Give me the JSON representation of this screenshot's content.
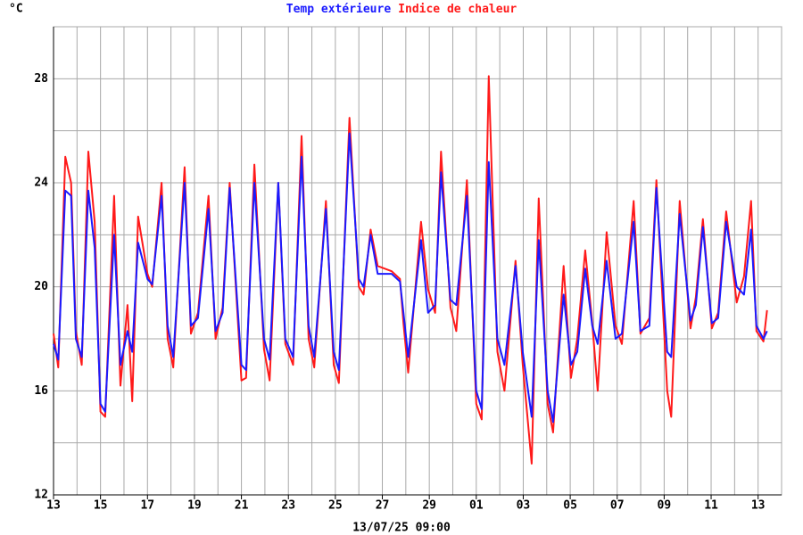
{
  "chart_data": {
    "type": "line",
    "ylabel": "°C",
    "xlabel": "13/07/25 09:00",
    "xlim": [
      0,
      31
    ],
    "ylim": [
      12,
      30
    ],
    "xticks": [
      {
        "value": 0,
        "label": "13"
      },
      {
        "value": 2,
        "label": "15"
      },
      {
        "value": 4,
        "label": "17"
      },
      {
        "value": 6,
        "label": "19"
      },
      {
        "value": 8,
        "label": "21"
      },
      {
        "value": 10,
        "label": "23"
      },
      {
        "value": 12,
        "label": "25"
      },
      {
        "value": 14,
        "label": "27"
      },
      {
        "value": 16,
        "label": "29"
      },
      {
        "value": 18,
        "label": "01"
      },
      {
        "value": 20,
        "label": "03"
      },
      {
        "value": 22,
        "label": "05"
      },
      {
        "value": 24,
        "label": "07"
      },
      {
        "value": 26,
        "label": "09"
      },
      {
        "value": 28,
        "label": "11"
      },
      {
        "value": 30,
        "label": "13"
      }
    ],
    "minor_xticks": [
      1,
      3,
      5,
      7,
      9,
      11,
      13,
      15,
      17,
      19,
      21,
      23,
      25,
      27,
      29,
      31
    ],
    "yticks": [
      12,
      16,
      20,
      24,
      28
    ],
    "minor_yticks": [
      14,
      18,
      22,
      26,
      30
    ],
    "grid": true,
    "x": [
      0,
      0.2,
      0.5,
      0.75,
      0.95,
      1.2,
      1.48,
      1.75,
      2.0,
      2.2,
      2.58,
      2.85,
      3.15,
      3.35,
      3.6,
      4.0,
      4.2,
      4.6,
      4.86,
      5.1,
      5.58,
      5.85,
      6.15,
      6.6,
      6.9,
      7.2,
      7.5,
      8.0,
      8.2,
      8.55,
      8.96,
      9.2,
      9.57,
      9.87,
      10.2,
      10.56,
      10.86,
      11.1,
      11.6,
      11.93,
      12.15,
      12.6,
      13.0,
      13.2,
      13.5,
      13.8,
      14.4,
      14.75,
      14.9,
      15.1,
      15.65,
      15.95,
      16.25,
      16.5,
      16.9,
      17.15,
      17.6,
      18.0,
      18.23,
      18.53,
      18.9,
      19.2,
      19.67,
      19.98,
      20.36,
      20.66,
      21.04,
      21.27,
      21.72,
      22.03,
      22.3,
      22.64,
      22.94,
      23.17,
      23.55,
      23.93,
      24.2,
      24.7,
      24.99,
      25.37,
      25.67,
      26.13,
      26.3,
      26.66,
      27.12,
      27.35,
      27.65,
      28.03,
      28.3,
      28.64,
      29.09,
      29.4,
      29.7,
      29.93,
      30.23,
      30.38
    ],
    "series": [
      {
        "name": "Temp extérieure",
        "color": "#1a1aff",
        "values": [
          17.8,
          17.2,
          23.7,
          23.5,
          18.0,
          17.3,
          23.7,
          21.5,
          15.5,
          15.2,
          22.0,
          17.0,
          18.3,
          17.5,
          21.7,
          20.3,
          20.1,
          23.5,
          18.5,
          17.3,
          24.0,
          18.5,
          18.8,
          23.0,
          18.3,
          19.0,
          23.8,
          17.0,
          16.8,
          24.0,
          18.0,
          17.2,
          24.0,
          18.0,
          17.3,
          25.0,
          18.5,
          17.3,
          23.0,
          17.5,
          16.8,
          25.9,
          20.3,
          20.0,
          22.0,
          20.5,
          20.5,
          20.2,
          19.0,
          17.3,
          21.8,
          19.0,
          19.3,
          24.4,
          19.5,
          19.3,
          23.5,
          16.0,
          15.3,
          24.8,
          18.0,
          17.0,
          20.8,
          17.5,
          15.0,
          21.8,
          16.0,
          14.8,
          19.7,
          17.0,
          17.5,
          20.7,
          18.5,
          17.8,
          21.0,
          18.0,
          18.2,
          22.5,
          18.3,
          18.5,
          23.8,
          17.5,
          17.3,
          22.8,
          18.7,
          19.3,
          22.3,
          18.6,
          18.8,
          22.5,
          20.0,
          19.7,
          22.2,
          18.5,
          18.0,
          18.3
        ]
      },
      {
        "name": "Indice de chaleur",
        "color": "#ff1a1a",
        "values": [
          18.2,
          16.9,
          25.0,
          24.0,
          18.3,
          17.0,
          25.2,
          22.5,
          15.2,
          15.0,
          23.5,
          16.2,
          19.3,
          15.6,
          22.7,
          20.5,
          20.0,
          24.0,
          18.0,
          16.9,
          24.6,
          18.2,
          19.0,
          23.5,
          18.0,
          19.2,
          24.0,
          16.4,
          16.5,
          24.7,
          17.6,
          16.4,
          24.0,
          17.8,
          17.0,
          25.8,
          18.0,
          16.9,
          23.3,
          17.0,
          16.3,
          26.5,
          20.0,
          19.7,
          22.2,
          20.8,
          20.6,
          20.3,
          18.6,
          16.7,
          22.5,
          19.9,
          19.0,
          25.2,
          19.2,
          18.3,
          24.1,
          15.5,
          14.9,
          28.1,
          17.5,
          16.0,
          21.0,
          17.0,
          13.2,
          23.4,
          15.5,
          14.4,
          20.8,
          16.5,
          18.0,
          21.4,
          18.6,
          16.0,
          22.1,
          18.5,
          17.8,
          23.3,
          18.2,
          18.8,
          24.1,
          16.0,
          15.0,
          23.3,
          18.4,
          19.6,
          22.6,
          18.4,
          19.0,
          22.9,
          19.4,
          20.4,
          23.3,
          18.3,
          17.9,
          19.1
        ]
      }
    ]
  }
}
